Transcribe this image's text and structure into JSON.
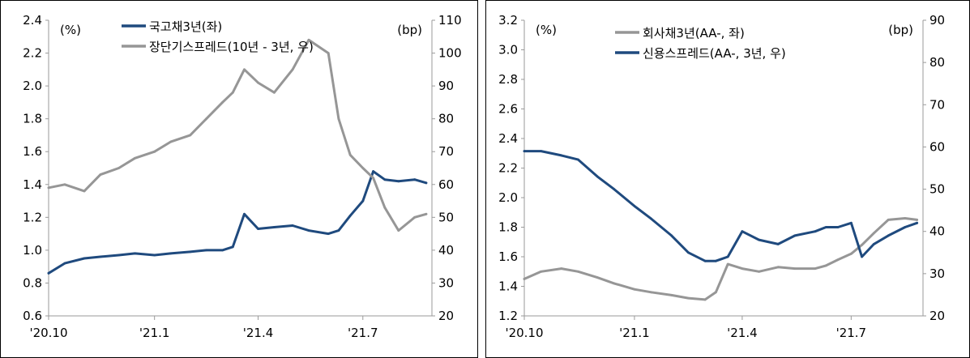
{
  "colors": {
    "navy": "#1f4a7e",
    "gray": "#969696",
    "axis": "#9a9a9a",
    "frame": "#000000"
  },
  "chart_data": [
    {
      "type": "line",
      "left_unit": "(%)",
      "right_unit": "(bp)",
      "xticks": [
        "'20.10",
        "'21.1",
        "'21.4",
        "'21.7"
      ],
      "y_left": {
        "min": 0.6,
        "max": 2.4,
        "ticks": [
          "0.6",
          "0.8",
          "1.0",
          "1.2",
          "1.4",
          "1.6",
          "1.8",
          "2.0",
          "2.2",
          "2.4"
        ]
      },
      "y_right": {
        "min": 20,
        "max": 110,
        "ticks": [
          "20",
          "30",
          "40",
          "50",
          "60",
          "70",
          "80",
          "90",
          "100",
          "110"
        ]
      },
      "x": [
        "2020-10-01",
        "2020-10-15",
        "2020-11-01",
        "2020-11-15",
        "2020-12-01",
        "2020-12-15",
        "2021-01-01",
        "2021-01-15",
        "2021-02-01",
        "2021-02-15",
        "2021-03-01",
        "2021-03-10",
        "2021-03-20",
        "2021-04-01",
        "2021-04-15",
        "2021-05-01",
        "2021-05-15",
        "2021-06-01",
        "2021-06-10",
        "2021-06-20",
        "2021-07-01",
        "2021-07-10",
        "2021-07-20",
        "2021-08-01",
        "2021-08-15",
        "2021-08-25"
      ],
      "series": [
        {
          "name": "국고채3년(좌)",
          "axis": "left",
          "color": "#1f4a7e",
          "values": [
            0.86,
            0.92,
            0.95,
            0.96,
            0.97,
            0.98,
            0.97,
            0.98,
            0.99,
            1.0,
            1.0,
            1.02,
            1.22,
            1.13,
            1.14,
            1.15,
            1.12,
            1.1,
            1.12,
            1.21,
            1.3,
            1.48,
            1.43,
            1.42,
            1.43,
            1.41
          ]
        },
        {
          "name": "장단기스프레드(10년 - 3년, 우)",
          "axis": "right",
          "color": "#969696",
          "values": [
            59,
            60,
            58,
            63,
            65,
            68,
            70,
            73,
            75,
            80,
            85,
            88,
            95,
            91,
            88,
            95,
            104,
            100,
            80,
            69,
            65,
            62,
            53,
            46,
            50,
            51
          ]
        }
      ]
    },
    {
      "type": "line",
      "left_unit": "(%)",
      "right_unit": "(bp)",
      "xticks": [
        "'20.10",
        "'21.1",
        "'21.4",
        "'21.7"
      ],
      "y_left": {
        "min": 1.2,
        "max": 3.2,
        "ticks": [
          "1.2",
          "1.4",
          "1.6",
          "1.8",
          "2.0",
          "2.2",
          "2.4",
          "2.6",
          "2.8",
          "3.0",
          "3.2"
        ]
      },
      "y_right": {
        "min": 20,
        "max": 90,
        "ticks": [
          "20",
          "30",
          "40",
          "50",
          "60",
          "70",
          "80",
          "90"
        ]
      },
      "x": [
        "2020-10-01",
        "2020-10-15",
        "2020-11-01",
        "2020-11-15",
        "2020-12-01",
        "2020-12-15",
        "2021-01-01",
        "2021-01-15",
        "2021-02-01",
        "2021-02-15",
        "2021-03-01",
        "2021-03-10",
        "2021-03-20",
        "2021-04-01",
        "2021-04-15",
        "2021-05-01",
        "2021-05-15",
        "2021-06-01",
        "2021-06-10",
        "2021-06-20",
        "2021-07-01",
        "2021-07-10",
        "2021-07-20",
        "2021-08-01",
        "2021-08-15",
        "2021-08-25"
      ],
      "series": [
        {
          "name": "회사채3년(AA-, 좌)",
          "axis": "left",
          "color": "#969696",
          "values": [
            1.45,
            1.5,
            1.52,
            1.5,
            1.46,
            1.42,
            1.38,
            1.36,
            1.34,
            1.32,
            1.31,
            1.36,
            1.55,
            1.52,
            1.5,
            1.53,
            1.52,
            1.52,
            1.54,
            1.58,
            1.62,
            1.68,
            1.76,
            1.85,
            1.86,
            1.85
          ]
        },
        {
          "name": "신용스프레드(AA-, 3년, 우)",
          "axis": "right",
          "color": "#1f4a7e",
          "values": [
            59,
            59,
            58,
            57,
            53,
            50,
            46,
            43,
            39,
            35,
            33,
            33,
            34,
            40,
            38,
            37,
            39,
            40,
            41,
            41,
            42,
            34,
            37,
            39,
            41,
            42
          ]
        }
      ]
    }
  ]
}
